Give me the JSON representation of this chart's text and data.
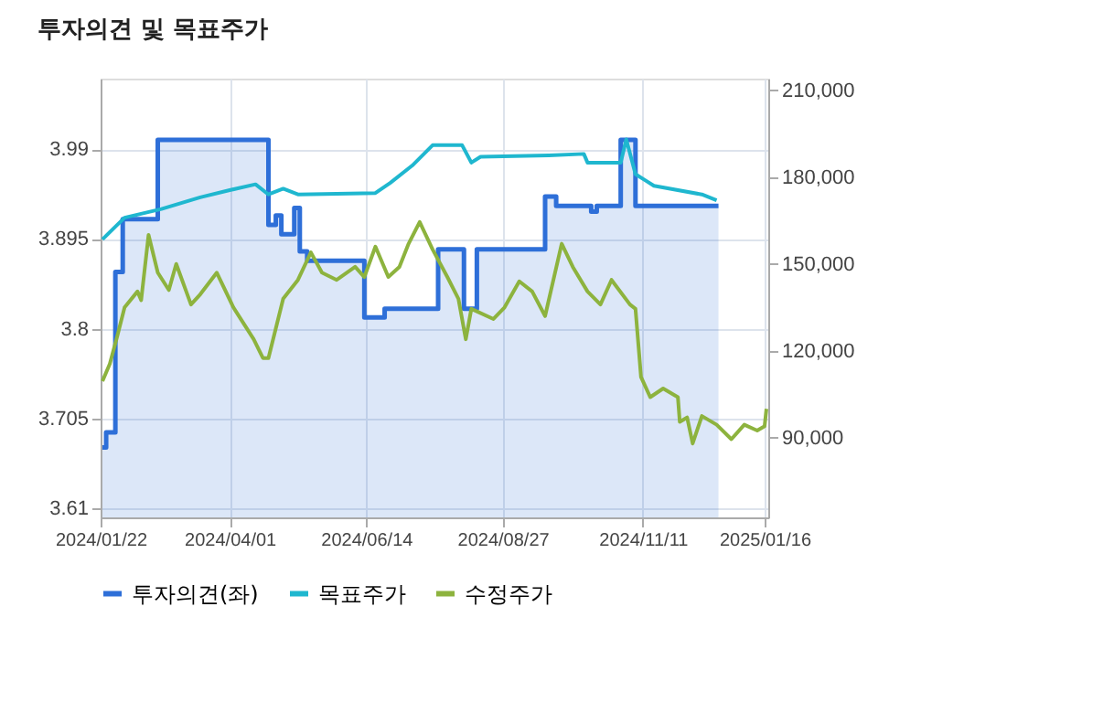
{
  "chart_data": {
    "type": "line",
    "title": "투자의견 및 목표주가",
    "xlim": [
      "2024-01-22",
      "2025-01-18"
    ],
    "xticks": [
      {
        "value": "2024-01-22",
        "label": "2024/01/22"
      },
      {
        "value": "2024-04-01",
        "label": "2024/04/01"
      },
      {
        "value": "2024-06-14",
        "label": "2024/06/14"
      },
      {
        "value": "2024-08-27",
        "label": "2024/08/27"
      },
      {
        "value": "2024-11-11",
        "label": "2024/11/11"
      },
      {
        "value": "2025-01-16",
        "label": "2025/01/16"
      }
    ],
    "ylim": [
      3.6,
      4.065
    ],
    "yticks": [
      {
        "value": 3.61,
        "label": "3.61"
      },
      {
        "value": 3.705,
        "label": "3.705"
      },
      {
        "value": 3.8,
        "label": "3.8"
      },
      {
        "value": 3.895,
        "label": "3.895"
      },
      {
        "value": 3.99,
        "label": "3.99"
      }
    ],
    "y2lim": [
      62500,
      214000
    ],
    "y2ticks": [
      {
        "value": 90000,
        "label": "90,000"
      },
      {
        "value": 120000,
        "label": "120,000"
      },
      {
        "value": 150000,
        "label": "150,000"
      },
      {
        "value": 180000,
        "label": "180,000"
      },
      {
        "value": 210000,
        "label": "210,000"
      }
    ],
    "grid": true,
    "legend": "bottom",
    "series": [
      {
        "name": "투자의견(좌)",
        "type": "area",
        "color": "#2e6fd8",
        "x": [
          "2024-01-23",
          "2024-01-25",
          "2024-01-25",
          "2024-01-30",
          "2024-01-30",
          "2024-02-03",
          "2024-02-03",
          "2024-02-22",
          "2024-02-22",
          "2024-04-22",
          "2024-04-22",
          "2024-04-26",
          "2024-04-26",
          "2024-04-29",
          "2024-04-29",
          "2024-05-06",
          "2024-05-06",
          "2024-05-09",
          "2024-05-09",
          "2024-05-13",
          "2024-05-13",
          "2024-06-13",
          "2024-06-13",
          "2024-06-24",
          "2024-06-24",
          "2024-07-23",
          "2024-07-23",
          "2024-08-06",
          "2024-08-06",
          "2024-08-13",
          "2024-08-13",
          "2024-09-19",
          "2024-09-19",
          "2024-09-25",
          "2024-09-25",
          "2024-10-14",
          "2024-10-14",
          "2024-10-17",
          "2024-10-17",
          "2024-10-30",
          "2024-10-30",
          "2024-11-07",
          "2024-11-07",
          "2024-12-22"
        ],
        "values": [
          3.674,
          3.674,
          3.69,
          3.69,
          3.86,
          3.86,
          3.916,
          3.916,
          4.0,
          4.0,
          3.91,
          3.91,
          3.92,
          3.92,
          3.9,
          3.9,
          3.928,
          3.928,
          3.882,
          3.882,
          3.872,
          3.872,
          3.812,
          3.812,
          3.821,
          3.821,
          3.884,
          3.884,
          3.821,
          3.821,
          3.884,
          3.884,
          3.94,
          3.94,
          3.93,
          3.93,
          3.924,
          3.924,
          3.93,
          3.93,
          4.0,
          4.0,
          3.93,
          3.93
        ]
      },
      {
        "name": "목표주가",
        "axis": "y2",
        "color": "#1fb7cf",
        "x": [
          "2024-01-23",
          "2024-02-04",
          "2024-02-14",
          "2024-02-24",
          "2024-03-16",
          "2024-04-01",
          "2024-04-15",
          "2024-04-22",
          "2024-04-30",
          "2024-05-08",
          "2024-06-19",
          "2024-06-27",
          "2024-07-09",
          "2024-07-20",
          "2024-08-05",
          "2024-08-10",
          "2024-08-15",
          "2024-09-21",
          "2024-10-10",
          "2024-10-12",
          "2024-10-30",
          "2024-11-02",
          "2024-11-07",
          "2024-11-12",
          "2024-11-17",
          "2024-12-13",
          "2024-12-21"
        ],
        "values": [
          158500,
          166000,
          167500,
          169000,
          173000,
          175500,
          177500,
          174000,
          176000,
          174000,
          174500,
          178000,
          184000,
          191000,
          191000,
          185000,
          187000,
          187500,
          188000,
          185000,
          185000,
          193000,
          181000,
          179000,
          177000,
          174000,
          172000
        ]
      },
      {
        "name": "수정주가",
        "axis": "y2",
        "color": "#8db33e",
        "x": [
          "2024-01-23",
          "2024-01-27",
          "2024-01-31",
          "2024-02-04",
          "2024-02-11",
          "2024-02-13",
          "2024-02-17",
          "2024-02-22",
          "2024-02-28",
          "2024-03-03",
          "2024-03-11",
          "2024-03-16",
          "2024-03-25",
          "2024-04-03",
          "2024-04-14",
          "2024-04-19",
          "2024-04-22",
          "2024-04-30",
          "2024-05-08",
          "2024-05-15",
          "2024-05-21",
          "2024-05-29",
          "2024-06-08",
          "2024-06-13",
          "2024-06-19",
          "2024-06-26",
          "2024-07-02",
          "2024-07-07",
          "2024-07-13",
          "2024-07-20",
          "2024-07-28",
          "2024-08-03",
          "2024-08-07",
          "2024-08-10",
          "2024-08-22",
          "2024-08-28",
          "2024-09-05",
          "2024-09-12",
          "2024-09-19",
          "2024-09-28",
          "2024-10-04",
          "2024-10-12",
          "2024-10-19",
          "2024-10-25",
          "2024-11-04",
          "2024-11-07",
          "2024-11-10",
          "2024-11-15",
          "2024-11-22",
          "2024-11-30",
          "2024-12-01",
          "2024-12-05",
          "2024-12-08",
          "2024-12-13",
          "2024-12-21",
          "2024-12-29",
          "2025-01-05",
          "2025-01-12",
          "2025-01-16",
          "2025-01-17"
        ],
        "values": [
          109500,
          115500,
          125000,
          135000,
          140500,
          137500,
          160000,
          147000,
          141000,
          150000,
          136000,
          139500,
          147000,
          135000,
          124000,
          117500,
          117500,
          138000,
          144500,
          154000,
          147000,
          144500,
          149000,
          145500,
          156000,
          145500,
          149000,
          157000,
          164500,
          155000,
          145500,
          138000,
          124000,
          134500,
          131000,
          135000,
          144000,
          140500,
          132000,
          157000,
          149000,
          140500,
          136000,
          144500,
          136000,
          134500,
          111000,
          104000,
          107000,
          104000,
          95500,
          97000,
          88000,
          97500,
          94500,
          89500,
          94500,
          92500,
          94000,
          100000
        ]
      }
    ]
  }
}
